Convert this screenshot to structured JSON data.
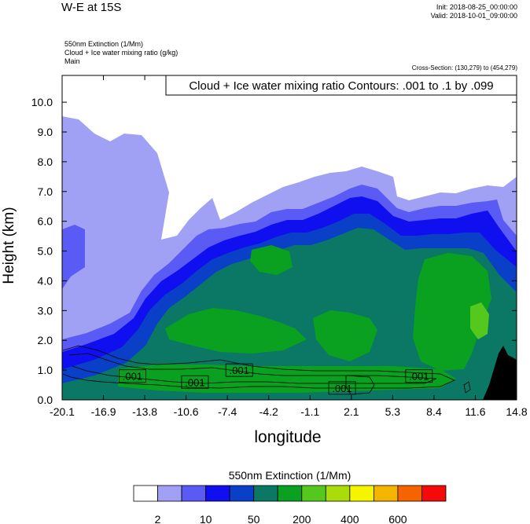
{
  "header": {
    "title": "W-E at 15S",
    "init": "Init: 2018-08-25_00:00:00",
    "valid": "Valid: 2018-10-01_09:00:00",
    "fields": [
      "550nm Extinction   (1/Mm)",
      "Cloud + Ice water mixing ratio   (g/kg)",
      "Main"
    ],
    "cross_section": "Cross-Section: (130,279) to (454,279)"
  },
  "chart_data": {
    "type": "heatmap",
    "title": "W-E at 15S",
    "annotation": "Cloud + Ice water mixing ratio Contours: .001 to .1 by .099",
    "xlabel": "longitude",
    "ylabel": "Height (km)",
    "xlim": [
      -20.1,
      14.8
    ],
    "ylim": [
      0.0,
      10.9
    ],
    "x_ticks": [
      "-20.1",
      "-16.9",
      "-13.8",
      "-10.6",
      "-7.4",
      "-4.2",
      "-1.1",
      "2.1",
      "5.3",
      "8.4",
      "11.6",
      "14.8"
    ],
    "y_ticks": [
      "0.0",
      "1.0",
      "2.0",
      "3.0",
      "4.0",
      "5.0",
      "6.0",
      "7.0",
      "8.0",
      "9.0",
      "10.0"
    ],
    "contour_labels": [
      {
        "text": ".001",
        "x": -14.7,
        "y": 0.8
      },
      {
        "text": ".001",
        "x": -9.9,
        "y": 0.6
      },
      {
        "text": ".001",
        "x": -6.5,
        "y": 1.0
      },
      {
        "text": ".001",
        "x": 1.4,
        "y": 0.4
      },
      {
        "text": ".001",
        "x": 7.3,
        "y": 0.8
      }
    ],
    "colorbar": {
      "title": "550nm Extinction  (1/Mm)",
      "tick_labels": [
        "2",
        "10",
        "50",
        "200",
        "400",
        "600"
      ],
      "colors": [
        "#ffffff",
        "#a0a0f5",
        "#5a5af5",
        "#0f0ff0",
        "#0a40c8",
        "#0a7864",
        "#0aa020",
        "#55c81e",
        "#aadc0a",
        "#f5f500",
        "#f5b400",
        "#f56400",
        "#f50a0a"
      ]
    },
    "fill_levels": {
      "terrain": "#000000",
      "l1": "#a0a0f5",
      "l2": "#5a5af5",
      "l3": "#0f0ff0",
      "l4": "#0a40c8",
      "l5": "#0a7864",
      "l6": "#0aa020",
      "l7": "#55c81e"
    }
  }
}
